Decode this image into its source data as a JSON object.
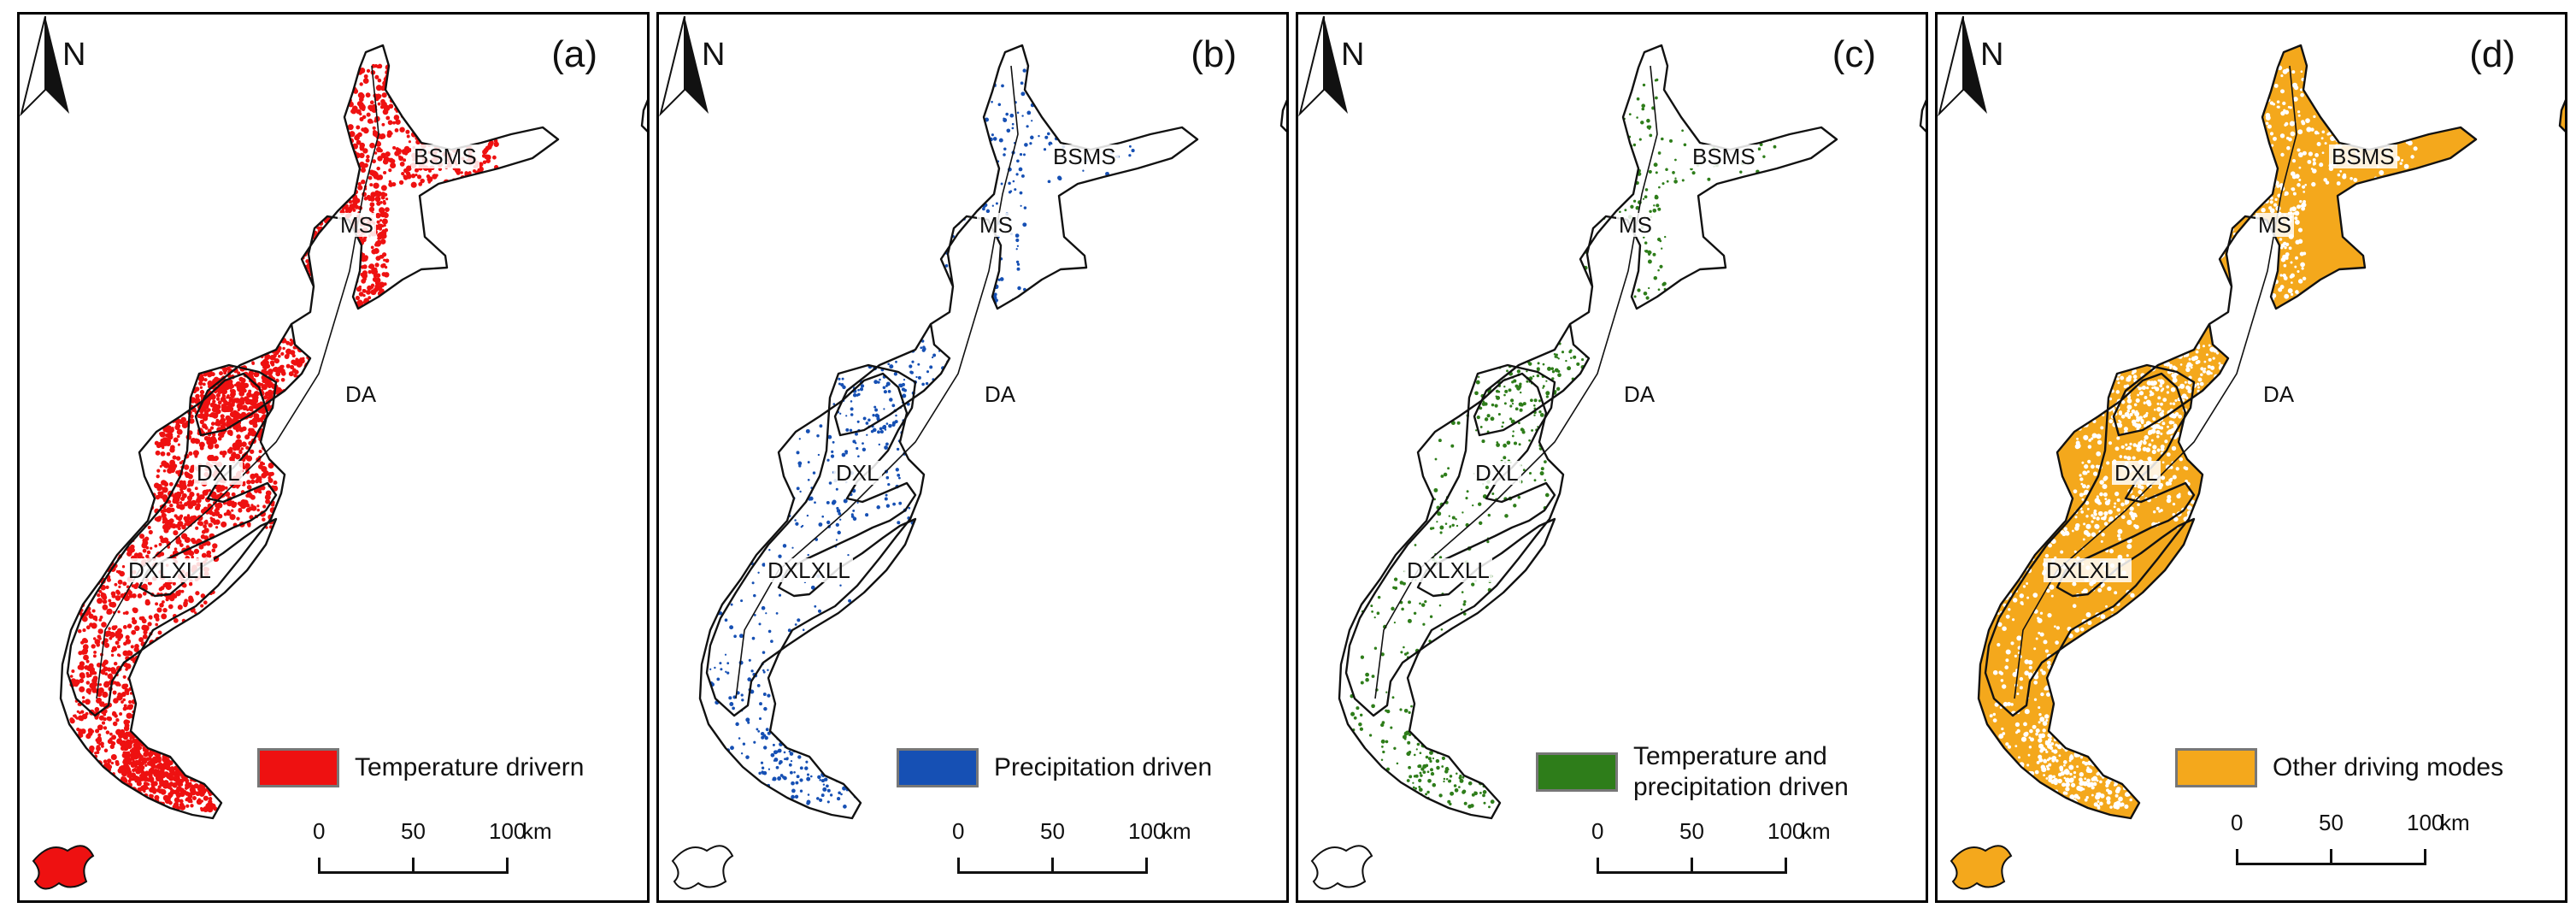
{
  "north_label": "N",
  "region_labels": {
    "bsms": "BSMS",
    "ms": "MS",
    "da": "DA",
    "dxl": "DXL",
    "dxlxll": "DXLXLL"
  },
  "scale_bar": {
    "ticks": [
      "0",
      "50",
      "100"
    ],
    "unit": "km"
  },
  "panels": [
    {
      "label": "(a)",
      "legend_text": "Temperature drivern",
      "color": "#ee1111",
      "pattern": "dense-speckle"
    },
    {
      "label": "(b)",
      "legend_text": "Precipitation driven",
      "color": "#1650b4",
      "pattern": "sparse-speckle"
    },
    {
      "label": "(c)",
      "legend_text": "Temperature and precipitation driven",
      "color": "#2e7d1a",
      "pattern": "sparse-speckle"
    },
    {
      "label": "(d)",
      "legend_text": "Other driving modes",
      "color": "#f4a81c",
      "pattern": "dense-fill"
    }
  ]
}
